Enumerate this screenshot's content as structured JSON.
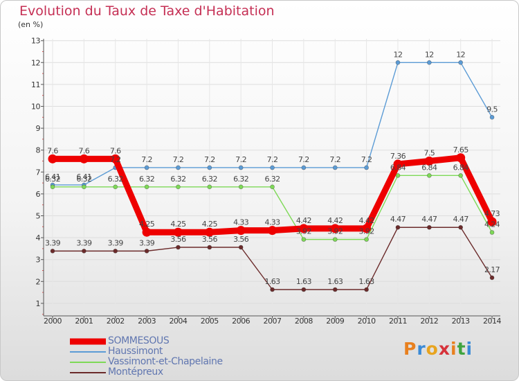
{
  "title": "Evolution du Taux de Taxe d'Habitation",
  "unit_label": "(en %)",
  "logo": {
    "text": "Proxiti",
    "letter_colors": [
      "#e8801f",
      "#3a8ad6",
      "#e8a41f",
      "#d6323a",
      "#e8801f",
      "#3fa43f",
      "#3a8ad6"
    ]
  },
  "chart_data": {
    "type": "line",
    "x": [
      "2000",
      "2001",
      "2002",
      "2003",
      "2004",
      "2005",
      "2006",
      "2007",
      "2008",
      "2009",
      "2010",
      "2011",
      "2012",
      "2013",
      "2014"
    ],
    "ylim": [
      0,
      13
    ],
    "yticks": [
      1,
      2,
      3,
      4,
      5,
      6,
      7,
      8,
      9,
      10,
      11,
      12,
      13
    ],
    "grid": true,
    "legend_position": "bottom-left",
    "series": [
      {
        "name": "SOMMESOUS",
        "color": "#ee0000",
        "values": [
          7.6,
          7.6,
          7.6,
          4.25,
          4.25,
          4.25,
          4.33,
          4.33,
          4.42,
          4.42,
          4.42,
          7.36,
          7.5,
          7.65,
          4.73
        ],
        "labels": [
          "7.6",
          "7.6",
          "7.6",
          "4.25",
          "4.25",
          "4.25",
          "4.33",
          "4.33",
          "4.42",
          "4.42",
          "4.42",
          "7.36",
          "7.5",
          "7.65",
          "4.73"
        ]
      },
      {
        "name": "Haussimont",
        "color": "#5b9bd5",
        "values": [
          6.41,
          6.41,
          7.2,
          7.2,
          7.2,
          7.2,
          7.2,
          7.2,
          7.2,
          7.2,
          7.2,
          12,
          12,
          12,
          9.5
        ],
        "labels": [
          "6.41",
          "6.41",
          "7.2",
          "7.2",
          "7.2",
          "7.2",
          "7.2",
          "7.2",
          "7.2",
          "7.2",
          "7.2",
          "12",
          "12",
          "12",
          "9.5"
        ]
      },
      {
        "name": "Vassimont-et-Chapelaine",
        "color": "#7ed957",
        "values": [
          6.32,
          6.32,
          6.32,
          6.32,
          6.32,
          6.32,
          6.32,
          6.32,
          3.92,
          3.92,
          3.92,
          6.84,
          6.84,
          6.84,
          4.24
        ],
        "labels": [
          "6.32",
          "6.32",
          "6.32",
          "6.32",
          "6.32",
          "6.32",
          "6.32",
          "6.32",
          "3.92",
          "3.92",
          "3.92",
          "6.84",
          "6.84",
          "6.84",
          "4.24"
        ]
      },
      {
        "name": "Montépreux",
        "color": "#6b2b2b",
        "values": [
          3.39,
          3.39,
          3.39,
          3.39,
          3.56,
          3.56,
          3.56,
          1.63,
          1.63,
          1.63,
          1.63,
          4.47,
          4.47,
          4.47,
          2.17
        ],
        "labels": [
          "3.39",
          "3.39",
          "3.39",
          "3.39",
          "3.56",
          "3.56",
          "3.56",
          "1.63",
          "1.63",
          "1.63",
          "1.63",
          "4.47",
          "4.47",
          "4.47",
          "2.17"
        ]
      }
    ]
  }
}
